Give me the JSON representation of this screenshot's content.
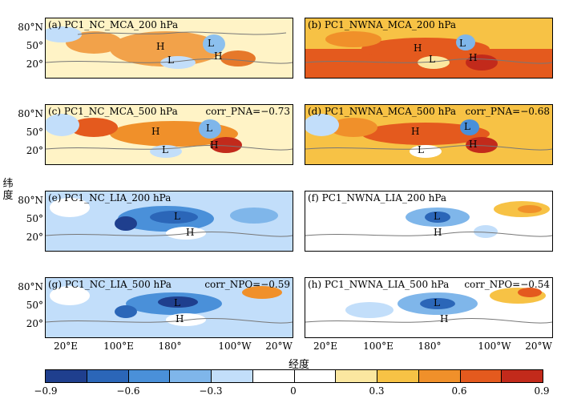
{
  "panels": [
    {
      "title": "(a) PC1_NC_MCA_200 hPa",
      "corr": ""
    },
    {
      "title": "(b) PC1_NWNA_MCA_200 hPa",
      "corr": ""
    },
    {
      "title": "(c) PC1_NC_MCA_500 hPa",
      "corr": "corr_PNA=−0.73"
    },
    {
      "title": "(d) PC1_NWNA_MCA_500 hPa",
      "corr": "corr_PNA=−0.68"
    },
    {
      "title": "(e) PC1_NC_LIA_200 hPa",
      "corr": ""
    },
    {
      "title": "(f) PC1_NWNA_LIA_200 hPa",
      "corr": ""
    },
    {
      "title": "(g) PC1_NC_LIA_500 hPa",
      "corr": "corr_NPO=−0.59"
    },
    {
      "title": "(h) PC1_NWNA_LIA_500 hPa",
      "corr": "corr_NPO=−0.54"
    }
  ],
  "lat_labels": [
    "80°N",
    "50°",
    "20°"
  ],
  "lon_labels": [
    "20°E",
    "100°E",
    "180°",
    "100°W",
    "20°W"
  ],
  "y_axis_label": "纬度",
  "x_axis_label": "经度",
  "markers": {
    "high": "H",
    "low": "L"
  },
  "colorbar": {
    "colors": [
      "#1f3f8e",
      "#2b66b8",
      "#4a90d9",
      "#7fb6ea",
      "#c2defa",
      "#ffffff",
      "#ffffff",
      "#fbe7a0",
      "#f7c245",
      "#f0902a",
      "#e45a1e",
      "#c22a1b"
    ],
    "ticks": [
      "−0.9",
      "−0.6",
      "−0.3",
      "0",
      "0.3",
      "0.6",
      "0.9"
    ]
  }
}
